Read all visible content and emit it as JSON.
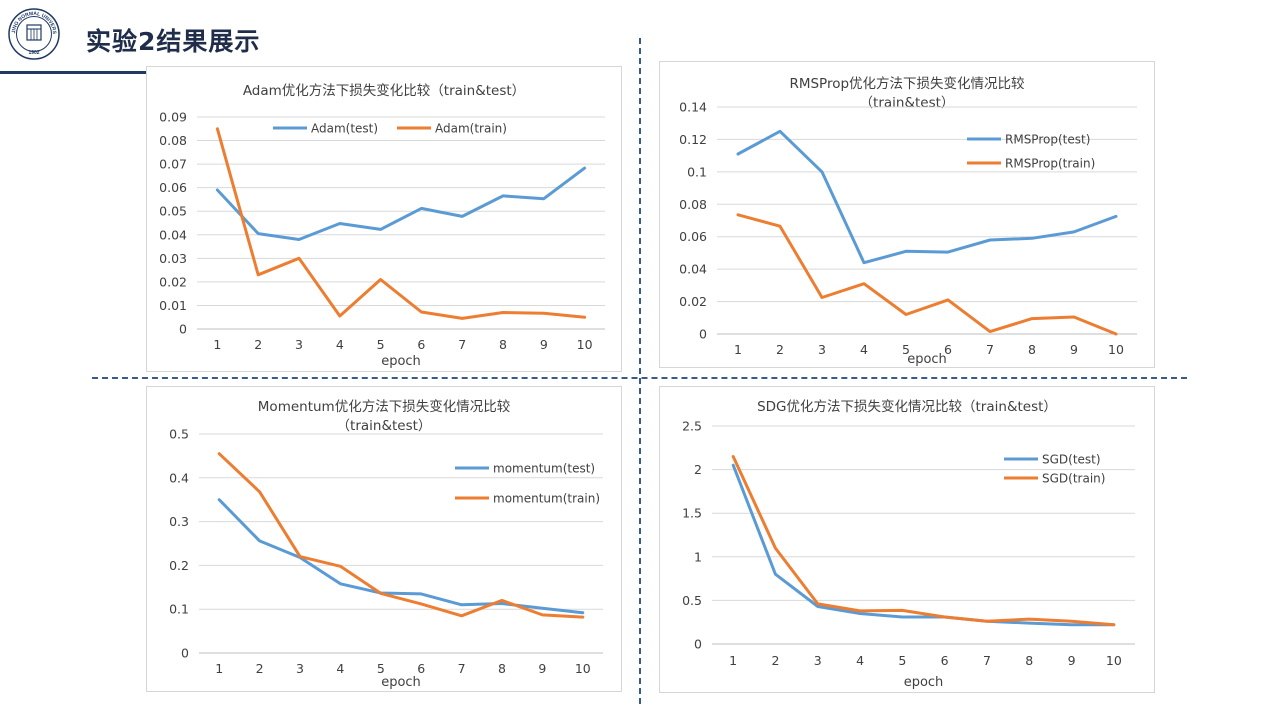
{
  "slide": {
    "title": "实验2结果展示",
    "logo_text_top": "BEIJING NORMAL UNIVERSITY",
    "logo_year": "1902",
    "colors": {
      "title": "#1f2d4a",
      "rule": "#1f3864",
      "separator": "#3a5a8a"
    }
  },
  "chart_data": [
    {
      "id": "adam",
      "type": "line",
      "title": [
        "Adam优化方法下损失变化比较（train&test）"
      ],
      "xlabel": "epoch",
      "ylabel": "",
      "x": [
        1,
        2,
        3,
        4,
        5,
        6,
        7,
        8,
        9,
        10
      ],
      "ylim": [
        0,
        0.09
      ],
      "yticks": [
        "0",
        "0.01",
        "0.02",
        "0.03",
        "0.04",
        "0.05",
        "0.06",
        "0.07",
        "0.08",
        "0.09"
      ],
      "legend_position": "top",
      "series": [
        {
          "name": "Adam(test)",
          "color": "#5b9bd5",
          "values": [
            0.059,
            0.0405,
            0.038,
            0.0448,
            0.0423,
            0.0512,
            0.0478,
            0.0565,
            0.0553,
            0.0683
          ]
        },
        {
          "name": "Adam(train)",
          "color": "#ed7d31",
          "values": [
            0.085,
            0.023,
            0.03,
            0.0055,
            0.021,
            0.0072,
            0.0045,
            0.007,
            0.0067,
            0.005
          ]
        }
      ]
    },
    {
      "id": "rmsprop",
      "type": "line",
      "title": [
        "RMSProp优化方法下损失变化情况比较",
        "（train&test）"
      ],
      "xlabel": "epoch",
      "ylabel": "",
      "x": [
        1,
        2,
        3,
        4,
        5,
        6,
        7,
        8,
        9,
        10
      ],
      "ylim": [
        0,
        0.14
      ],
      "yticks": [
        "0",
        "0.02",
        "0.04",
        "0.06",
        "0.08",
        "0.1",
        "0.12",
        "0.14"
      ],
      "legend_position": "right",
      "series": [
        {
          "name": "RMSProp(test)",
          "color": "#5b9bd5",
          "values": [
            0.111,
            0.125,
            0.1,
            0.044,
            0.051,
            0.0505,
            0.058,
            0.059,
            0.063,
            0.0725
          ]
        },
        {
          "name": "RMSProp(train)",
          "color": "#ed7d31",
          "values": [
            0.0735,
            0.0665,
            0.0225,
            0.031,
            0.012,
            0.021,
            0.0015,
            0.0095,
            0.0105,
            0.0
          ]
        }
      ]
    },
    {
      "id": "momentum",
      "type": "line",
      "title": [
        "Momentum优化方法下损失变化情况比较",
        "（train&test）"
      ],
      "xlabel": "epoch",
      "ylabel": "",
      "x": [
        1,
        2,
        3,
        4,
        5,
        6,
        7,
        8,
        9,
        10
      ],
      "ylim": [
        0,
        0.5
      ],
      "yticks": [
        "0",
        "0.1",
        "0.2",
        "0.3",
        "0.4",
        "0.5"
      ],
      "legend_position": "right",
      "series": [
        {
          "name": "momentum(test)",
          "color": "#5b9bd5",
          "values": [
            0.35,
            0.256,
            0.218,
            0.158,
            0.137,
            0.135,
            0.11,
            0.113,
            0.102,
            0.092
          ]
        },
        {
          "name": "momentum(train)",
          "color": "#ed7d31",
          "values": [
            0.455,
            0.368,
            0.22,
            0.198,
            0.136,
            0.112,
            0.085,
            0.12,
            0.087,
            0.082
          ]
        }
      ]
    },
    {
      "id": "sgd",
      "type": "line",
      "title": [
        "SDG优化方法下损失变化情况比较（train&test）"
      ],
      "xlabel": "epoch",
      "ylabel": "",
      "x": [
        1,
        2,
        3,
        4,
        5,
        6,
        7,
        8,
        9,
        10
      ],
      "ylim": [
        0,
        2.5
      ],
      "yticks": [
        "0",
        "0.5",
        "1",
        "1.5",
        "2",
        "2.5"
      ],
      "legend_position": "right",
      "series": [
        {
          "name": "SGD(test)",
          "color": "#5b9bd5",
          "values": [
            2.05,
            0.8,
            0.43,
            0.35,
            0.31,
            0.31,
            0.26,
            0.24,
            0.22,
            0.22
          ]
        },
        {
          "name": "SGD(train)",
          "color": "#ed7d31",
          "values": [
            2.15,
            1.1,
            0.46,
            0.38,
            0.385,
            0.31,
            0.26,
            0.285,
            0.26,
            0.22
          ]
        }
      ]
    }
  ]
}
